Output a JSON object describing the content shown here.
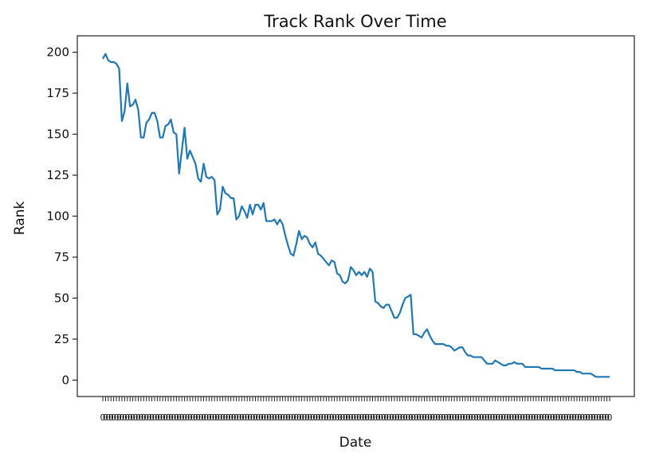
{
  "chart_data": {
    "type": "line",
    "title": "Track Rank Over Time",
    "xlabel": "Date",
    "ylabel": "Rank",
    "ylim": [
      -10,
      210
    ],
    "yticks": [
      0,
      25,
      50,
      75,
      100,
      125,
      150,
      175,
      200
    ],
    "grid": false,
    "legend": "none",
    "line_color": "#1f77b4",
    "x_tick_labels_overlapping": true,
    "series": [
      {
        "values": [
          196,
          199,
          195,
          194,
          194,
          193,
          190,
          158,
          164,
          181,
          167,
          168,
          171,
          165,
          148,
          148,
          157,
          159,
          163,
          163,
          158,
          148,
          148,
          155,
          156,
          159,
          151,
          150,
          126,
          140,
          154,
          135,
          140,
          136,
          132,
          123,
          121,
          132,
          124,
          123,
          124,
          122,
          101,
          104,
          118,
          114,
          113,
          111,
          111,
          98,
          100,
          106,
          103,
          99,
          107,
          101,
          107,
          107,
          104,
          108,
          97,
          97,
          97,
          98,
          95,
          98,
          95,
          88,
          82,
          77,
          76,
          83,
          91,
          86,
          88,
          87,
          83,
          81,
          84,
          77,
          76,
          74,
          72,
          70,
          73,
          72,
          65,
          64,
          60,
          59,
          61,
          69,
          67,
          64,
          66,
          64,
          66,
          63,
          68,
          66,
          48,
          47,
          45,
          44,
          46,
          46,
          42,
          38,
          38,
          41,
          46,
          50,
          51,
          52,
          28,
          28,
          27,
          26,
          29,
          31,
          27,
          24,
          22,
          22,
          22,
          22,
          21,
          21,
          20,
          18,
          19,
          20,
          20,
          17,
          15,
          15,
          14,
          14,
          14,
          14,
          12,
          10,
          10,
          10,
          12,
          11,
          10,
          9,
          9,
          10,
          10,
          11,
          10,
          10,
          10,
          8,
          8,
          8,
          8,
          8,
          8,
          7,
          7,
          7,
          7,
          7,
          6,
          6,
          6,
          6,
          6,
          6,
          6,
          6,
          5,
          5,
          4,
          4,
          4,
          4,
          3,
          2,
          2,
          2,
          2,
          2,
          2
        ]
      }
    ]
  }
}
